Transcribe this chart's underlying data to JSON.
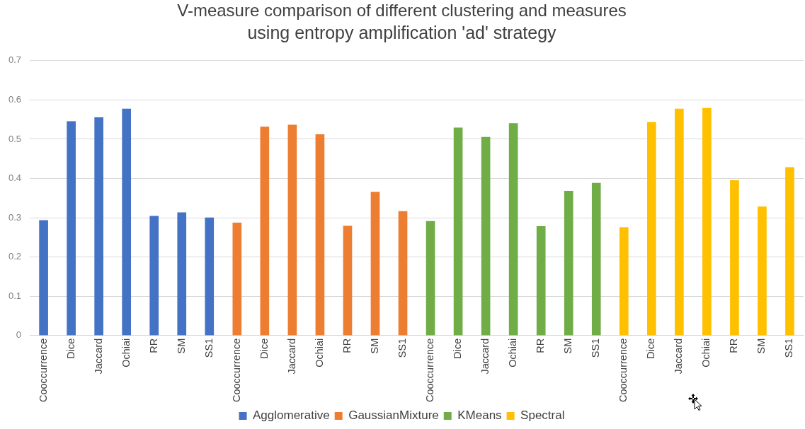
{
  "chart_data": {
    "type": "bar",
    "title": "V-measure comparison of different clustering and measures",
    "subtitle": "using entropy amplification 'ad' strategy",
    "categories": [
      "Cooccurrence",
      "Dice",
      "Jaccard",
      "Ochiai",
      "RR",
      "SM",
      "SS1",
      "Cooccurrence",
      "Dice",
      "Jaccard",
      "Ochiai",
      "RR",
      "SM",
      "SS1",
      "Cooccurrence",
      "Dice",
      "Jaccard",
      "Ochiai",
      "RR",
      "SM",
      "SS1",
      "Cooccurrence",
      "Dice",
      "Jaccard",
      "Ochiai",
      "RR",
      "SM",
      "SS1"
    ],
    "series": [
      {
        "name": "Agglomerative",
        "color": "#4472c4",
        "values": [
          0.293,
          0.545,
          0.555,
          0.577,
          0.304,
          0.313,
          0.3,
          null,
          null,
          null,
          null,
          null,
          null,
          null,
          null,
          null,
          null,
          null,
          null,
          null,
          null,
          null,
          null,
          null,
          null,
          null,
          null,
          null
        ]
      },
      {
        "name": "GaussianMixture",
        "color": "#ed7d31",
        "values": [
          null,
          null,
          null,
          null,
          null,
          null,
          null,
          0.287,
          0.531,
          0.536,
          0.512,
          0.279,
          0.365,
          0.316,
          null,
          null,
          null,
          null,
          null,
          null,
          null,
          null,
          null,
          null,
          null,
          null,
          null,
          null
        ]
      },
      {
        "name": "KMeans",
        "color": "#70ad47",
        "values": [
          null,
          null,
          null,
          null,
          null,
          null,
          null,
          null,
          null,
          null,
          null,
          null,
          null,
          null,
          0.291,
          0.529,
          0.505,
          0.54,
          0.278,
          0.368,
          0.388,
          null,
          null,
          null,
          null,
          null,
          null,
          null
        ]
      },
      {
        "name": "Spectral",
        "color": "#ffc000",
        "values": [
          null,
          null,
          null,
          null,
          null,
          null,
          null,
          null,
          null,
          null,
          null,
          null,
          null,
          null,
          null,
          null,
          null,
          null,
          null,
          null,
          null,
          0.275,
          0.543,
          0.577,
          0.579,
          0.395,
          0.328,
          0.428
        ]
      }
    ],
    "ylim": [
      0,
      0.7
    ],
    "yticks": [
      0,
      0.1,
      0.2,
      0.3,
      0.4,
      0.5,
      0.6,
      0.7
    ],
    "grid": "y",
    "legend": "bottom"
  }
}
